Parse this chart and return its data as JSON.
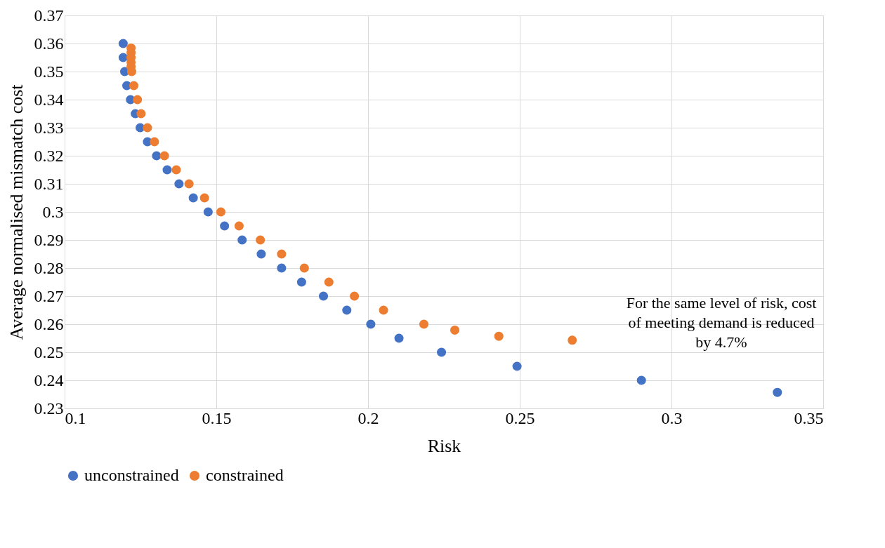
{
  "chart_data": {
    "type": "scatter",
    "xlabel": "Risk",
    "ylabel": "Average normalised mismatch cost",
    "series": [
      {
        "name": "unconstrained",
        "color": "#4472c4",
        "x": [
          0.1193,
          0.1193,
          0.1198,
          0.1205,
          0.1217,
          0.1233,
          0.1249,
          0.1273,
          0.1303,
          0.1338,
          0.1377,
          0.1424,
          0.1473,
          0.1527,
          0.1585,
          0.1648,
          0.1715,
          0.1781,
          0.1853,
          0.193,
          0.2009,
          0.2102,
          0.2242,
          0.2491,
          0.2901,
          0.3349
        ],
        "values": [
          0.36,
          0.355,
          0.35,
          0.345,
          0.34,
          0.335,
          0.33,
          0.325,
          0.32,
          0.315,
          0.31,
          0.305,
          0.3,
          0.295,
          0.29,
          0.285,
          0.28,
          0.275,
          0.27,
          0.265,
          0.26,
          0.255,
          0.25,
          0.245,
          0.24,
          0.2357
        ]
      },
      {
        "name": "constrained",
        "color": "#ed7d31",
        "x": [
          0.1219,
          0.1219,
          0.1219,
          0.1219,
          0.1219,
          0.1221,
          0.1228,
          0.124,
          0.1252,
          0.1273,
          0.1296,
          0.1329,
          0.1368,
          0.141,
          0.1461,
          0.1515,
          0.1575,
          0.1645,
          0.1715,
          0.179,
          0.1871,
          0.1955,
          0.2051,
          0.2184,
          0.2286,
          0.2431,
          0.2673
        ],
        "values": [
          0.3584,
          0.3567,
          0.355,
          0.3533,
          0.3517,
          0.35,
          0.345,
          0.34,
          0.335,
          0.33,
          0.325,
          0.32,
          0.315,
          0.31,
          0.305,
          0.3,
          0.295,
          0.29,
          0.285,
          0.28,
          0.275,
          0.27,
          0.265,
          0.26,
          0.2579,
          0.2557,
          0.2543
        ]
      }
    ],
    "xlim": [
      0.1,
      0.35
    ],
    "xticks": [
      0.1,
      0.15,
      0.2,
      0.25,
      0.3,
      0.35
    ],
    "ylim": [
      0.23,
      0.37
    ],
    "yticks": [
      0.23,
      0.24,
      0.25,
      0.26,
      0.27,
      0.28,
      0.29,
      0.3,
      0.31,
      0.32,
      0.33,
      0.34,
      0.35,
      0.36,
      0.37
    ],
    "grid": true,
    "legend": "bottom",
    "marker": "circle",
    "annotations": [
      "For the same level of risk, cost\nof meeting demand is reduced\nby 4.7%"
    ]
  }
}
